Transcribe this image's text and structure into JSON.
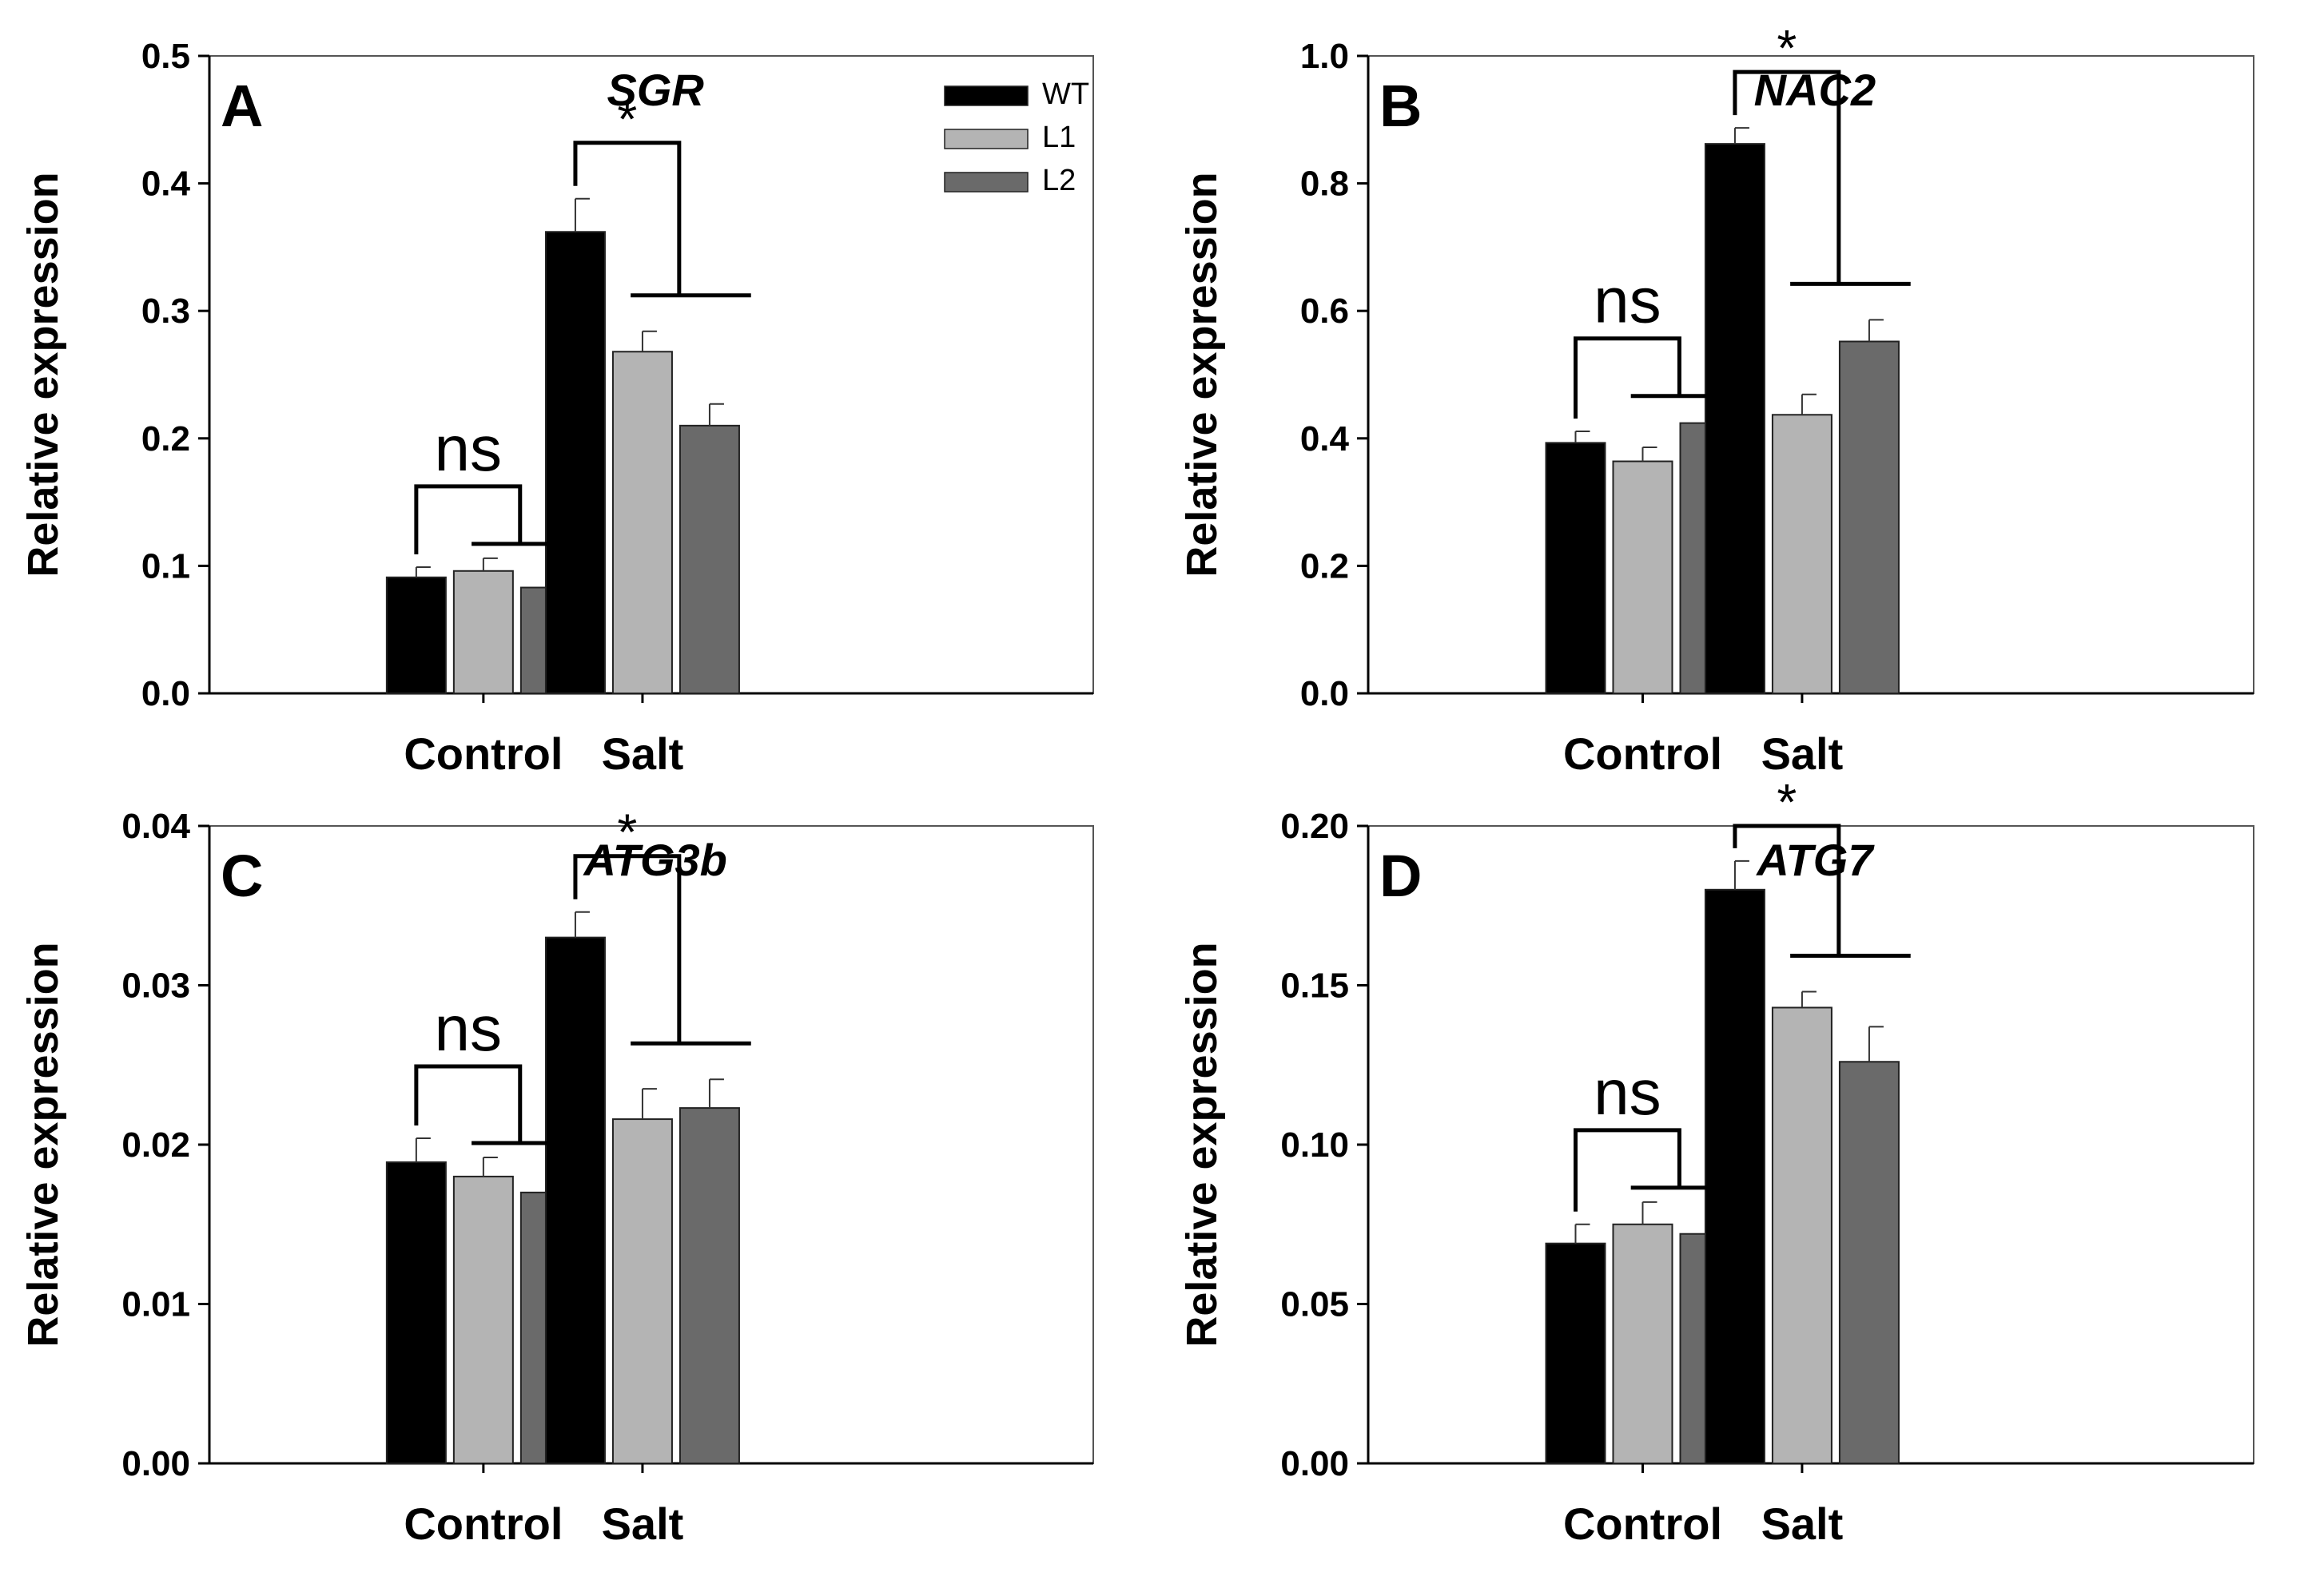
{
  "legend": [
    {
      "name": "WT",
      "color": "#000000"
    },
    {
      "name": "L1",
      "color": "#b4b4b4"
    },
    {
      "name": "L2",
      "color": "#6a6a6a"
    }
  ],
  "chart_data": [
    {
      "type": "bar",
      "panel": "A",
      "title": "SGR",
      "ylabel": "Relative expression",
      "xlabel": "",
      "categories": [
        "Control",
        "Salt"
      ],
      "ylim": [
        0,
        0.5
      ],
      "yticks": [
        "0.0",
        "0.1",
        "0.2",
        "0.3",
        "0.4",
        "0.5"
      ],
      "series": [
        {
          "name": "WT",
          "values": [
            0.091,
            0.362
          ],
          "errors": [
            0.008,
            0.026
          ]
        },
        {
          "name": "L1",
          "values": [
            0.096,
            0.268
          ],
          "errors": [
            0.01,
            0.016
          ]
        },
        {
          "name": "L2",
          "values": [
            0.083,
            0.21
          ],
          "errors": [
            0.011,
            0.017
          ]
        }
      ],
      "significance": [
        "ns",
        "*"
      ],
      "legend_position": "top-right"
    },
    {
      "type": "bar",
      "panel": "B",
      "title": "NAC2",
      "ylabel": "Relative expression",
      "xlabel": "",
      "categories": [
        "Control",
        "Salt"
      ],
      "ylim": [
        0,
        1.0
      ],
      "yticks": [
        "0.0",
        "0.2",
        "0.4",
        "0.6",
        "0.8",
        "1.0"
      ],
      "series": [
        {
          "name": "WT",
          "values": [
            0.393,
            0.862
          ],
          "errors": [
            0.018,
            0.025
          ]
        },
        {
          "name": "L1",
          "values": [
            0.364,
            0.437
          ],
          "errors": [
            0.022,
            0.032
          ]
        },
        {
          "name": "L2",
          "values": [
            0.424,
            0.552
          ],
          "errors": [
            0.02,
            0.034
          ]
        }
      ],
      "significance": [
        "ns",
        "*"
      ]
    },
    {
      "type": "bar",
      "panel": "C",
      "title": "ATG3b",
      "ylabel": "Relative expression",
      "xlabel": "",
      "categories": [
        "Control",
        "Salt"
      ],
      "ylim": [
        0,
        0.04
      ],
      "yticks": [
        "0.00",
        "0.01",
        "0.02",
        "0.03",
        "0.04"
      ],
      "series": [
        {
          "name": "WT",
          "values": [
            0.0189,
            0.033
          ],
          "errors": [
            0.0015,
            0.0016
          ]
        },
        {
          "name": "L1",
          "values": [
            0.018,
            0.0216
          ],
          "errors": [
            0.0012,
            0.0019
          ]
        },
        {
          "name": "L2",
          "values": [
            0.017,
            0.0223
          ],
          "errors": [
            0.0017,
            0.0018
          ]
        }
      ],
      "significance": [
        "ns",
        "*"
      ]
    },
    {
      "type": "bar",
      "panel": "D",
      "title": "ATG7",
      "ylabel": "Relative expression",
      "xlabel": "",
      "categories": [
        "Control",
        "Salt"
      ],
      "ylim": [
        0,
        0.2
      ],
      "yticks": [
        "0.00",
        "0.05",
        "0.10",
        "0.15",
        "0.20"
      ],
      "series": [
        {
          "name": "WT",
          "values": [
            0.069,
            0.18
          ],
          "errors": [
            0.006,
            0.009
          ]
        },
        {
          "name": "L1",
          "values": [
            0.075,
            0.143
          ],
          "errors": [
            0.007,
            0.005
          ]
        },
        {
          "name": "L2",
          "values": [
            0.072,
            0.126
          ],
          "errors": [
            0.005,
            0.011
          ]
        }
      ],
      "significance": [
        "ns",
        "*"
      ]
    }
  ]
}
